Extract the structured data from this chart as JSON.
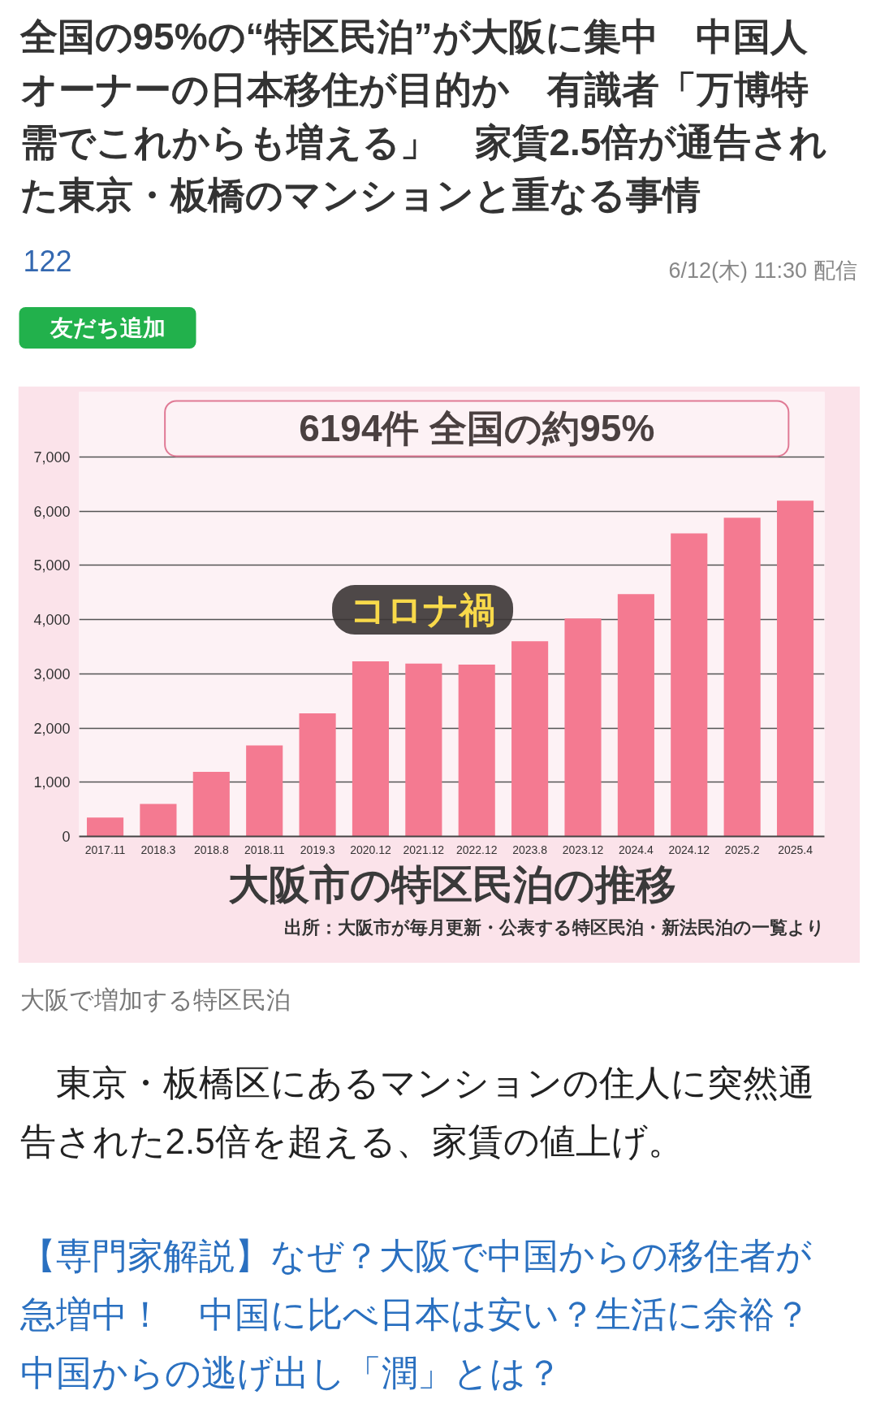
{
  "chart_data": {
    "type": "bar",
    "title": "全国の95%の“特区民泊”が大阪に集中　中国人オーナーの日本移住が目的か　有識者「万博特需でこれからも増える」　家賃2.5倍が通告された東京・板橋のマンションと重なる事情",
    "subtitle": "大阪市の特区民泊の推移",
    "categories": [
      "2017.11",
      "2018.3",
      "2018.8",
      "2018.11",
      "2019.3",
      "2020.12",
      "2021.12",
      "2022.12",
      "2023.8",
      "2023.12",
      "2024.4",
      "2024.12",
      "2025.2",
      "2025.4"
    ],
    "values": [
      350,
      600,
      1190,
      1680,
      2270,
      3230,
      3190,
      3170,
      3600,
      4020,
      4470,
      5590,
      5880,
      6194
    ],
    "color": "#f47a91",
    "ylim": [
      0,
      8200
    ],
    "yticks": [
      0,
      {
        "value": 1000,
        "label": "1,000"
      },
      {
        "value": 2000,
        "label": "2,000"
      },
      {
        "value": 3000,
        "label": "3,000"
      },
      {
        "value": 4000,
        "label": "4,000"
      },
      {
        "value": 5000,
        "label": "5,000"
      },
      {
        "value": 6000,
        "label": "6,000"
      },
      {
        "value": 7000,
        "label": "7,000"
      }
    ],
    "grid": "y",
    "annotations": [
      "6194件 全国の約95%",
      "コロナ禍",
      "出所：大阪市が毎月更新・公表する特区民泊・新法民泊の一覧より",
      "122",
      "6/12(木) 11:30 配信",
      "友だち追加",
      "大阪で増加する特区民泊",
      "　東京・板橋区にあるマンションの住人に突然通告された2.5倍を超える、家賃の値上げ。",
      "【専門家解説】なぜ？大阪で中国からの移住者が急増中！　中国に比べ日本は安い？生活に余裕？中国からの逃げ出し「潤」とは？"
    ]
  }
}
